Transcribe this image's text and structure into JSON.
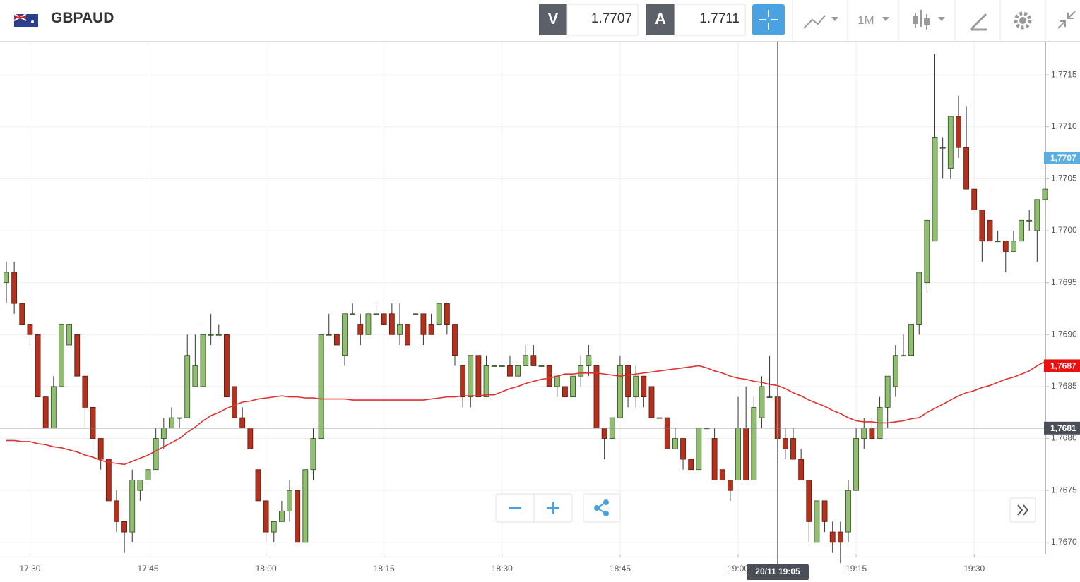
{
  "header": {
    "symbol": "GBPAUD",
    "bid_label": "V",
    "bid": "1.7707",
    "ask_label": "A",
    "ask": "1.7711",
    "timeframe": "1M"
  },
  "chart_data": {
    "type": "candlestick",
    "categories": [
      null,
      null,
      null,
      "17:30",
      null,
      null,
      null,
      null,
      null,
      null,
      null,
      null,
      null,
      null,
      null,
      null,
      null,
      null,
      "17:45",
      null,
      null,
      null,
      null,
      null,
      null,
      null,
      null,
      null,
      null,
      null,
      null,
      null,
      null,
      "18:00",
      null,
      null,
      null,
      null,
      null,
      null,
      null,
      null,
      null,
      null,
      null,
      null,
      null,
      null,
      "18:15",
      null,
      null,
      null,
      null,
      null,
      null,
      null,
      null,
      null,
      null,
      null,
      null,
      null,
      null,
      "18:30",
      null,
      null,
      null,
      null,
      null,
      null,
      null,
      null,
      null,
      null,
      null,
      null,
      null,
      null,
      "18:45",
      null,
      null,
      null,
      null,
      null,
      null,
      null,
      null,
      null,
      null,
      null,
      null,
      null,
      null,
      "19:00",
      null,
      null,
      null,
      null,
      null,
      null,
      null,
      null,
      null,
      null,
      null,
      null,
      null,
      null,
      "19:15",
      null,
      null,
      null,
      null,
      null,
      null,
      null,
      null,
      null,
      null,
      null,
      null,
      null,
      null,
      "19:30",
      null,
      null,
      null,
      null,
      null,
      null,
      null,
      null,
      null
    ],
    "open": [
      1.7695,
      1.7696,
      1.7693,
      1.7691,
      1.769,
      1.7684,
      1.7681,
      1.7685,
      1.7689,
      1.769,
      1.7686,
      1.7683,
      1.768,
      1.7678,
      1.7674,
      1.7672,
      1.7671,
      1.7675,
      1.7676,
      1.7677,
      1.768,
      1.7681,
      1.7682,
      1.7682,
      1.7685,
      1.7685,
      1.769,
      1.769,
      1.769,
      1.7685,
      1.7682,
      1.7681,
      1.7677,
      1.7674,
      1.7671,
      1.7672,
      1.7673,
      1.7675,
      1.767,
      1.7677,
      1.768,
      1.769,
      1.769,
      1.7688,
      1.7692,
      1.7691,
      1.769,
      1.7692,
      1.7692,
      1.7692,
      1.769,
      1.7691,
      1.7692,
      1.7692,
      1.7691,
      1.7691,
      1.7693,
      1.7691,
      1.7687,
      1.7684,
      1.7688,
      1.7684,
      1.7687,
      1.7687,
      1.7687,
      1.7686,
      1.7687,
      1.7688,
      1.7687,
      1.7687,
      1.7685,
      1.7685,
      1.7684,
      1.7686,
      1.7687,
      1.7687,
      1.7681,
      1.768,
      1.7682,
      1.7687,
      1.7684,
      1.7686,
      1.7685,
      1.7682,
      1.7682,
      1.7679,
      1.768,
      1.7678,
      1.7677,
      1.7681,
      1.768,
      1.7677,
      1.7676,
      1.7676,
      1.7681,
      1.7676,
      1.7682,
      1.7684,
      1.7684,
      1.768,
      1.768,
      1.7678,
      1.7676,
      1.767,
      1.7674,
      1.7671,
      1.7671,
      1.7671,
      1.7675,
      1.768,
      1.7681,
      1.768,
      1.7683,
      1.7685,
      1.7688,
      1.7688,
      1.7691,
      1.7695,
      1.7699,
      1.7708,
      1.7706,
      1.7711,
      1.7708,
      1.7704,
      1.7702,
      1.7701,
      1.7699,
      1.7699,
      1.7698,
      1.7699,
      1.7701,
      1.77,
      1.7703
    ],
    "high": [
      1.7697,
      1.7697,
      1.7693,
      1.7691,
      1.769,
      1.7684,
      1.7686,
      1.7691,
      1.7691,
      1.769,
      1.7686,
      1.7683,
      1.768,
      1.7678,
      1.7675,
      1.7672,
      1.7677,
      1.7676,
      1.7677,
      1.7681,
      1.7682,
      1.7683,
      1.7682,
      1.769,
      1.769,
      1.7691,
      1.7692,
      1.7691,
      1.769,
      1.7685,
      1.7683,
      1.7681,
      1.7677,
      1.7674,
      1.7672,
      1.7674,
      1.7676,
      1.7675,
      1.7677,
      1.7681,
      1.769,
      1.7692,
      1.769,
      1.7692,
      1.7693,
      1.7692,
      1.7692,
      1.7693,
      1.7692,
      1.7693,
      1.7693,
      1.7691,
      1.7692,
      1.7692,
      1.7692,
      1.7693,
      1.7693,
      1.7691,
      1.7687,
      1.7688,
      1.7688,
      1.7688,
      1.7687,
      1.7687,
      1.7688,
      1.7687,
      1.7689,
      1.7689,
      1.7687,
      1.7687,
      1.7686,
      1.7685,
      1.7686,
      1.7688,
      1.7689,
      1.7687,
      1.7681,
      1.7682,
      1.7688,
      1.7687,
      1.7687,
      1.7686,
      1.7685,
      1.7682,
      1.7682,
      1.7681,
      1.768,
      1.7678,
      1.7681,
      1.7681,
      1.7681,
      1.7677,
      1.7676,
      1.7684,
      1.7685,
      1.7684,
      1.7686,
      1.7688,
      1.7685,
      1.7681,
      1.7681,
      1.7679,
      1.7676,
      1.7674,
      1.7674,
      1.7672,
      1.7672,
      1.7676,
      1.7681,
      1.7682,
      1.7682,
      1.7684,
      1.7686,
      1.7689,
      1.769,
      1.7691,
      1.7696,
      1.7701,
      1.7717,
      1.7709,
      1.7711,
      1.7713,
      1.7712,
      1.7704,
      1.7702,
      1.7704,
      1.77,
      1.7699,
      1.77,
      1.7701,
      1.7702,
      1.7703,
      1.7705
    ],
    "low": [
      1.7693,
      1.7692,
      1.7691,
      1.7689,
      1.7684,
      1.7681,
      1.7681,
      1.7685,
      1.7689,
      1.7686,
      1.7681,
      1.7679,
      1.7677,
      1.7674,
      1.7671,
      1.7669,
      1.767,
      1.7674,
      1.7676,
      1.7677,
      1.7679,
      1.7681,
      1.7681,
      1.7682,
      1.7685,
      1.7685,
      1.7689,
      1.769,
      1.7684,
      1.7682,
      1.7681,
      1.7679,
      1.7674,
      1.767,
      1.767,
      1.7672,
      1.7672,
      1.767,
      1.767,
      1.7676,
      1.768,
      1.769,
      1.7689,
      1.7687,
      1.7692,
      1.7689,
      1.769,
      1.7692,
      1.7691,
      1.769,
      1.7689,
      1.7689,
      1.7692,
      1.7689,
      1.769,
      1.7691,
      1.769,
      1.7687,
      1.7683,
      1.7683,
      1.7684,
      1.7684,
      1.7687,
      1.7687,
      1.7686,
      1.7686,
      1.7687,
      1.7687,
      1.7687,
      1.7685,
      1.7684,
      1.7684,
      1.7684,
      1.7685,
      1.7686,
      1.7681,
      1.7678,
      1.768,
      1.7682,
      1.7683,
      1.7683,
      1.7683,
      1.7682,
      1.7682,
      1.7679,
      1.7679,
      1.7677,
      1.7677,
      1.7677,
      1.7681,
      1.7676,
      1.7676,
      1.7674,
      1.7676,
      1.7676,
      1.7676,
      1.7681,
      1.7684,
      1.7678,
      1.7678,
      1.7678,
      1.7676,
      1.767,
      1.767,
      1.7671,
      1.7669,
      1.7668,
      1.767,
      1.7675,
      1.7679,
      1.768,
      1.768,
      1.7681,
      1.7684,
      1.7688,
      1.7688,
      1.769,
      1.7694,
      1.7699,
      1.7705,
      1.7705,
      1.7707,
      1.7704,
      1.7702,
      1.7697,
      1.7699,
      1.7699,
      1.7696,
      1.7698,
      1.7699,
      1.77,
      1.7697,
      1.7702
    ],
    "close": [
      1.7696,
      1.7693,
      1.7691,
      1.769,
      1.7684,
      1.7681,
      1.7685,
      1.7691,
      1.7691,
      1.7686,
      1.7683,
      1.768,
      1.7678,
      1.7674,
      1.7672,
      1.7671,
      1.7676,
      1.7676,
      1.7677,
      1.768,
      1.7681,
      1.7682,
      1.7682,
      1.7688,
      1.7687,
      1.769,
      1.769,
      1.769,
      1.7684,
      1.7682,
      1.7681,
      1.7679,
      1.7674,
      1.7671,
      1.7672,
      1.7673,
      1.7675,
      1.767,
      1.7677,
      1.768,
      1.769,
      1.769,
      1.7689,
      1.7692,
      1.7692,
      1.769,
      1.7692,
      1.7692,
      1.7691,
      1.769,
      1.7691,
      1.7689,
      1.7692,
      1.769,
      1.769,
      1.7693,
      1.7691,
      1.7688,
      1.7684,
      1.7688,
      1.7684,
      1.7687,
      1.7687,
      1.7687,
      1.7686,
      1.7687,
      1.7688,
      1.7687,
      1.7687,
      1.7685,
      1.7686,
      1.7684,
      1.7686,
      1.7687,
      1.7688,
      1.7681,
      1.768,
      1.7682,
      1.7687,
      1.7684,
      1.7686,
      1.7684,
      1.7682,
      1.7682,
      1.7679,
      1.768,
      1.7678,
      1.7677,
      1.7681,
      1.7681,
      1.7676,
      1.7676,
      1.7675,
      1.7681,
      1.7676,
      1.7683,
      1.7685,
      1.7684,
      1.768,
      1.7679,
      1.7678,
      1.7676,
      1.7672,
      1.7674,
      1.7672,
      1.767,
      1.767,
      1.7675,
      1.768,
      1.7681,
      1.768,
      1.7683,
      1.7686,
      1.7688,
      1.7688,
      1.7691,
      1.7696,
      1.7701,
      1.7709,
      1.7708,
      1.7711,
      1.7708,
      1.7704,
      1.7702,
      1.7699,
      1.7699,
      1.7699,
      1.7698,
      1.7699,
      1.7701,
      1.7701,
      1.7703,
      1.7704
    ],
    "up_color": "#8fbf6f",
    "down_color": "#b3321e",
    "moving_average": {
      "color": "#e03030",
      "values": [
        1.76798,
        1.76798,
        1.76797,
        1.76797,
        1.76795,
        1.76794,
        1.76792,
        1.76791,
        1.76789,
        1.76787,
        1.76784,
        1.76782,
        1.76779,
        1.76777,
        1.76776,
        1.76775,
        1.76778,
        1.76781,
        1.76784,
        1.76788,
        1.76792,
        1.76796,
        1.768,
        1.76806,
        1.76811,
        1.76817,
        1.76822,
        1.76825,
        1.76829,
        1.76832,
        1.76835,
        1.76836,
        1.76838,
        1.76839,
        1.7684,
        1.76841,
        1.7684,
        1.7684,
        1.76839,
        1.76839,
        1.76838,
        1.76838,
        1.76838,
        1.76838,
        1.76837,
        1.76837,
        1.76837,
        1.76837,
        1.76837,
        1.76837,
        1.76837,
        1.76837,
        1.76837,
        1.76837,
        1.76838,
        1.76839,
        1.7684,
        1.7684,
        1.76841,
        1.76841,
        1.76841,
        1.76842,
        1.76842,
        1.76845,
        1.76848,
        1.7685,
        1.76853,
        1.76855,
        1.76857,
        1.76858,
        1.7686,
        1.76862,
        1.76862,
        1.76863,
        1.76863,
        1.76863,
        1.76862,
        1.76861,
        1.7686,
        1.76861,
        1.76862,
        1.76863,
        1.76864,
        1.76865,
        1.76866,
        1.76867,
        1.76868,
        1.76869,
        1.7687,
        1.76868,
        1.76865,
        1.76863,
        1.7686,
        1.76858,
        1.76857,
        1.76855,
        1.76854,
        1.76852,
        1.76851,
        1.76848,
        1.76844,
        1.76841,
        1.76837,
        1.76834,
        1.76831,
        1.76827,
        1.76824,
        1.7682,
        1.76817,
        1.76816,
        1.76816,
        1.76815,
        1.76815,
        1.76816,
        1.76817,
        1.76819,
        1.7682,
        1.76825,
        1.76829,
        1.76833,
        1.76837,
        1.76841,
        1.76844,
        1.76846,
        1.76849,
        1.76851,
        1.76854,
        1.76857,
        1.76859,
        1.76862,
        1.76865,
        1.7687,
        1.76874
      ]
    },
    "ylim": [
      1.76689,
      1.77182
    ],
    "yticks": [
      {
        "value": 1.767,
        "label": "1,7670"
      },
      {
        "value": 1.7675,
        "label": "1,7675"
      },
      {
        "value": 1.768,
        "label": "1,7680"
      },
      {
        "value": 1.7685,
        "label": "1,7685"
      },
      {
        "value": 1.769,
        "label": "1,7690"
      },
      {
        "value": 1.7695,
        "label": "1,7695"
      },
      {
        "value": 1.77,
        "label": "1,7700"
      },
      {
        "value": 1.7705,
        "label": "1,7705"
      },
      {
        "value": 1.771,
        "label": "1,7710"
      },
      {
        "value": 1.7715,
        "label": "1,7715"
      }
    ],
    "grid": true,
    "price_labels": [
      {
        "value": 1.7707,
        "label": "1,7707",
        "color": "#5aafe0"
      },
      {
        "value": 1.7687,
        "label": "1,7687",
        "color": "#e81010"
      },
      {
        "value": 1.7681,
        "label": "1,7681",
        "color": "#4a4f57"
      }
    ],
    "crosshair_label": "20/11 19:05"
  }
}
